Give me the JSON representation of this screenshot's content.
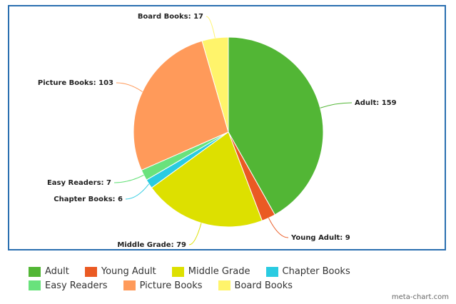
{
  "chart_data": {
    "type": "pie",
    "slices": [
      {
        "label": "Adult",
        "value": 159,
        "color": "#52b635"
      },
      {
        "label": "Young Adult",
        "value": 9,
        "color": "#ea5a23"
      },
      {
        "label": "Middle Grade",
        "value": 79,
        "color": "#dde000"
      },
      {
        "label": "Chapter Books",
        "value": 6,
        "color": "#2acbe1"
      },
      {
        "label": "Easy Readers",
        "value": 7,
        "color": "#69e27c"
      },
      {
        "label": "Picture Books",
        "value": 103,
        "color": "#ff9a5a"
      },
      {
        "label": "Board Books",
        "value": 17,
        "color": "#fff46b"
      }
    ],
    "legend_position": "bottom"
  },
  "watermark": "meta-chart.com"
}
